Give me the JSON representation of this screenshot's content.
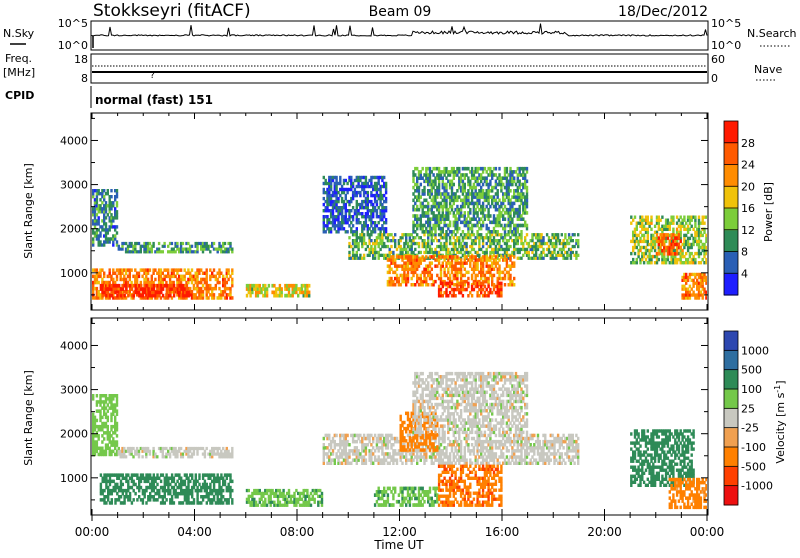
{
  "header": {
    "station": "Stokkseyri (fitACF)",
    "beam": "Beam 09",
    "date": "18/Dec/2012"
  },
  "meta_rows": {
    "nsky_label": "N.Sky",
    "nsky_ticks": [
      "10^5",
      "10^0"
    ],
    "nsearch_label": "N.Search",
    "nsearch_ticks": [
      "10^5",
      "10^0"
    ],
    "freq_label": "Freq.",
    "freq_unit": "[MHz]",
    "freq_ticks": [
      "18",
      "8"
    ],
    "nave_label": "Nave",
    "nave_ticks": [
      "60",
      "0"
    ],
    "cpid_label": "CPID",
    "cpid_value": "normal (fast) 151"
  },
  "axes": {
    "ylabel": "Slant Range [km]",
    "xlabel": "Time UT",
    "y_ticks": [
      "1000",
      "2000",
      "3000",
      "4000"
    ],
    "x_ticks": [
      "00:00",
      "04:00",
      "08:00",
      "12:00",
      "16:00",
      "20:00",
      "00:00"
    ]
  },
  "colorbars": {
    "power": {
      "label": "Power [dB]",
      "ticks": [
        "4",
        "8",
        "12",
        "16",
        "20",
        "24",
        "28"
      ],
      "colors": [
        "#1e1eff",
        "#2a5fb5",
        "#2e8b57",
        "#7ccd3a",
        "#f0c20a",
        "#ff8c00",
        "#ff5a00",
        "#ff1a00"
      ]
    },
    "velocity": {
      "label": "Velocity [m s",
      "label_sup": "-1",
      "label_end": "]",
      "ticks": [
        "1000",
        "500",
        "100",
        "25",
        "-25",
        "-100",
        "-500",
        "-1000"
      ],
      "colors": [
        "#2d47b0",
        "#2e6ea0",
        "#2e8b57",
        "#74c84a",
        "#c8c8c0",
        "#f0a050",
        "#ff8000",
        "#ff4000",
        "#ee1010"
      ]
    }
  },
  "chart_data": [
    {
      "type": "heatmap",
      "title": "Power",
      "xlabel": "Time UT",
      "ylabel": "Slant Range [km]",
      "xlim": [
        "00:00",
        "24:00"
      ],
      "ylim": [
        180,
        4600
      ],
      "colorbar": {
        "label": "Power [dB]",
        "range": [
          0,
          30
        ]
      },
      "regions": [
        {
          "t0": 0.0,
          "t1": 1.0,
          "r0": 1600,
          "r1": 2900,
          "value": 8
        },
        {
          "t0": 0.0,
          "t1": 5.5,
          "r0": 400,
          "r1": 1100,
          "value": 22
        },
        {
          "t0": 0.3,
          "t1": 3.8,
          "r0": 450,
          "r1": 750,
          "value": 28
        },
        {
          "t0": 1.0,
          "t1": 5.5,
          "r0": 1450,
          "r1": 1700,
          "value": 10
        },
        {
          "t0": 6.0,
          "t1": 8.5,
          "r0": 450,
          "r1": 750,
          "value": 16
        },
        {
          "t0": 9.0,
          "t1": 11.5,
          "r0": 1900,
          "r1": 3200,
          "value": 6
        },
        {
          "t0": 10.0,
          "t1": 19.0,
          "r0": 1300,
          "r1": 1900,
          "value": 12
        },
        {
          "t0": 11.5,
          "t1": 16.5,
          "r0": 700,
          "r1": 1400,
          "value": 22
        },
        {
          "t0": 13.5,
          "t1": 16.0,
          "r0": 450,
          "r1": 800,
          "value": 26
        },
        {
          "t0": 12.5,
          "t1": 17.0,
          "r0": 1900,
          "r1": 3400,
          "value": 10
        },
        {
          "t0": 21.0,
          "t1": 24.0,
          "r0": 1200,
          "r1": 2300,
          "value": 14
        },
        {
          "t0": 22.0,
          "t1": 23.0,
          "r0": 1400,
          "r1": 1900,
          "value": 24
        },
        {
          "t0": 23.0,
          "t1": 24.0,
          "r0": 400,
          "r1": 1000,
          "value": 22
        }
      ]
    },
    {
      "type": "heatmap",
      "title": "Velocity",
      "xlabel": "Time UT",
      "ylabel": "Slant Range [km]",
      "xlim": [
        "00:00",
        "24:00"
      ],
      "ylim": [
        180,
        4600
      ],
      "colorbar": {
        "label": "Velocity [m s-1]",
        "range": [
          -1000,
          1000
        ]
      },
      "regions": [
        {
          "t0": 0.0,
          "t1": 1.0,
          "r0": 1500,
          "r1": 2900,
          "value": 60
        },
        {
          "t0": 0.3,
          "t1": 5.5,
          "r0": 400,
          "r1": 1100,
          "value": 300
        },
        {
          "t0": 1.0,
          "t1": 5.5,
          "r0": 1450,
          "r1": 1700,
          "value": 0
        },
        {
          "t0": 6.0,
          "t1": 9.0,
          "r0": 350,
          "r1": 750,
          "value": 80
        },
        {
          "t0": 9.0,
          "t1": 19.0,
          "r0": 1300,
          "r1": 2000,
          "value": 0
        },
        {
          "t0": 11.0,
          "t1": 13.5,
          "r0": 350,
          "r1": 800,
          "value": 80
        },
        {
          "t0": 12.0,
          "t1": 13.5,
          "r0": 1600,
          "r1": 2500,
          "value": -200
        },
        {
          "t0": 13.5,
          "t1": 16.0,
          "r0": 350,
          "r1": 1300,
          "value": -400
        },
        {
          "t0": 12.5,
          "t1": 17.0,
          "r0": 2000,
          "r1": 3400,
          "value": 0
        },
        {
          "t0": 21.0,
          "t1": 23.5,
          "r0": 800,
          "r1": 2100,
          "value": 200
        },
        {
          "t0": 22.5,
          "t1": 24.0,
          "r0": 300,
          "r1": 1000,
          "value": -150
        }
      ]
    }
  ]
}
